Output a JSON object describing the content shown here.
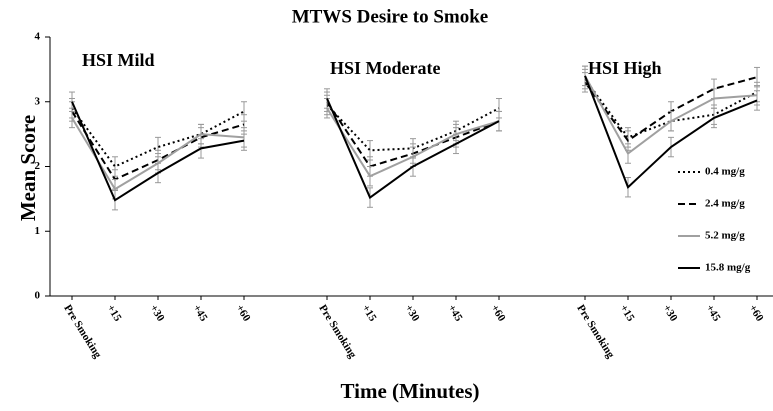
{
  "chart_data": {
    "type": "line",
    "title": "MTWS Desire to Smoke",
    "xlabel": "Time (Minutes)",
    "ylabel": "Mean Score",
    "ylim": [
      0,
      4
    ],
    "yticks": [
      0,
      1,
      2,
      3,
      4
    ],
    "categories": [
      "Pre Smoking",
      "+15",
      "+30",
      "+45",
      "+60"
    ],
    "panels": [
      {
        "title": "HSI Mild"
      },
      {
        "title": "HSI Moderate"
      },
      {
        "title": "HSI High"
      }
    ],
    "legend": "right",
    "series": [
      {
        "name": "0.4 mg/g",
        "color": "#000000",
        "style": "dotted",
        "values": [
          [
            2.9,
            2.0,
            2.3,
            2.5,
            2.85
          ],
          [
            2.95,
            2.25,
            2.28,
            2.55,
            2.9
          ],
          [
            3.35,
            2.45,
            2.7,
            2.8,
            3.15
          ]
        ],
        "errors": [
          [
            0.15,
            0.15,
            0.15,
            0.15,
            0.15
          ],
          [
            0.15,
            0.15,
            0.15,
            0.15,
            0.15
          ],
          [
            0.15,
            0.15,
            0.15,
            0.15,
            0.15
          ]
        ]
      },
      {
        "name": "2.4 mg/g",
        "color": "#000000",
        "style": "dashed",
        "values": [
          [
            2.85,
            1.8,
            2.1,
            2.45,
            2.65
          ],
          [
            3.0,
            2.0,
            2.2,
            2.45,
            2.7
          ],
          [
            3.3,
            2.4,
            2.85,
            3.2,
            3.38
          ]
        ],
        "errors": [
          [
            0.15,
            0.15,
            0.15,
            0.15,
            0.15
          ],
          [
            0.15,
            0.15,
            0.15,
            0.15,
            0.15
          ],
          [
            0.15,
            0.15,
            0.15,
            0.15,
            0.15
          ]
        ]
      },
      {
        "name": "5.2 mg/g",
        "color": "#a0a0a0",
        "style": "solid",
        "values": [
          [
            2.75,
            1.65,
            2.05,
            2.5,
            2.45
          ],
          [
            2.9,
            1.85,
            2.15,
            2.5,
            2.7
          ],
          [
            3.4,
            2.2,
            2.7,
            3.05,
            3.1
          ]
        ],
        "errors": [
          [
            0.15,
            0.15,
            0.15,
            0.15,
            0.15
          ],
          [
            0.15,
            0.15,
            0.15,
            0.15,
            0.15
          ],
          [
            0.15,
            0.15,
            0.15,
            0.15,
            0.15
          ]
        ]
      },
      {
        "name": "15.8 mg/g",
        "color": "#000000",
        "style": "solid",
        "values": [
          [
            3.0,
            1.48,
            1.9,
            2.28,
            2.4
          ],
          [
            3.05,
            1.52,
            2.0,
            2.35,
            2.7
          ],
          [
            3.4,
            1.68,
            2.3,
            2.75,
            3.02
          ]
        ],
        "errors": [
          [
            0.15,
            0.15,
            0.15,
            0.15,
            0.15
          ],
          [
            0.15,
            0.15,
            0.15,
            0.15,
            0.15
          ],
          [
            0.15,
            0.15,
            0.15,
            0.15,
            0.15
          ]
        ]
      }
    ]
  }
}
